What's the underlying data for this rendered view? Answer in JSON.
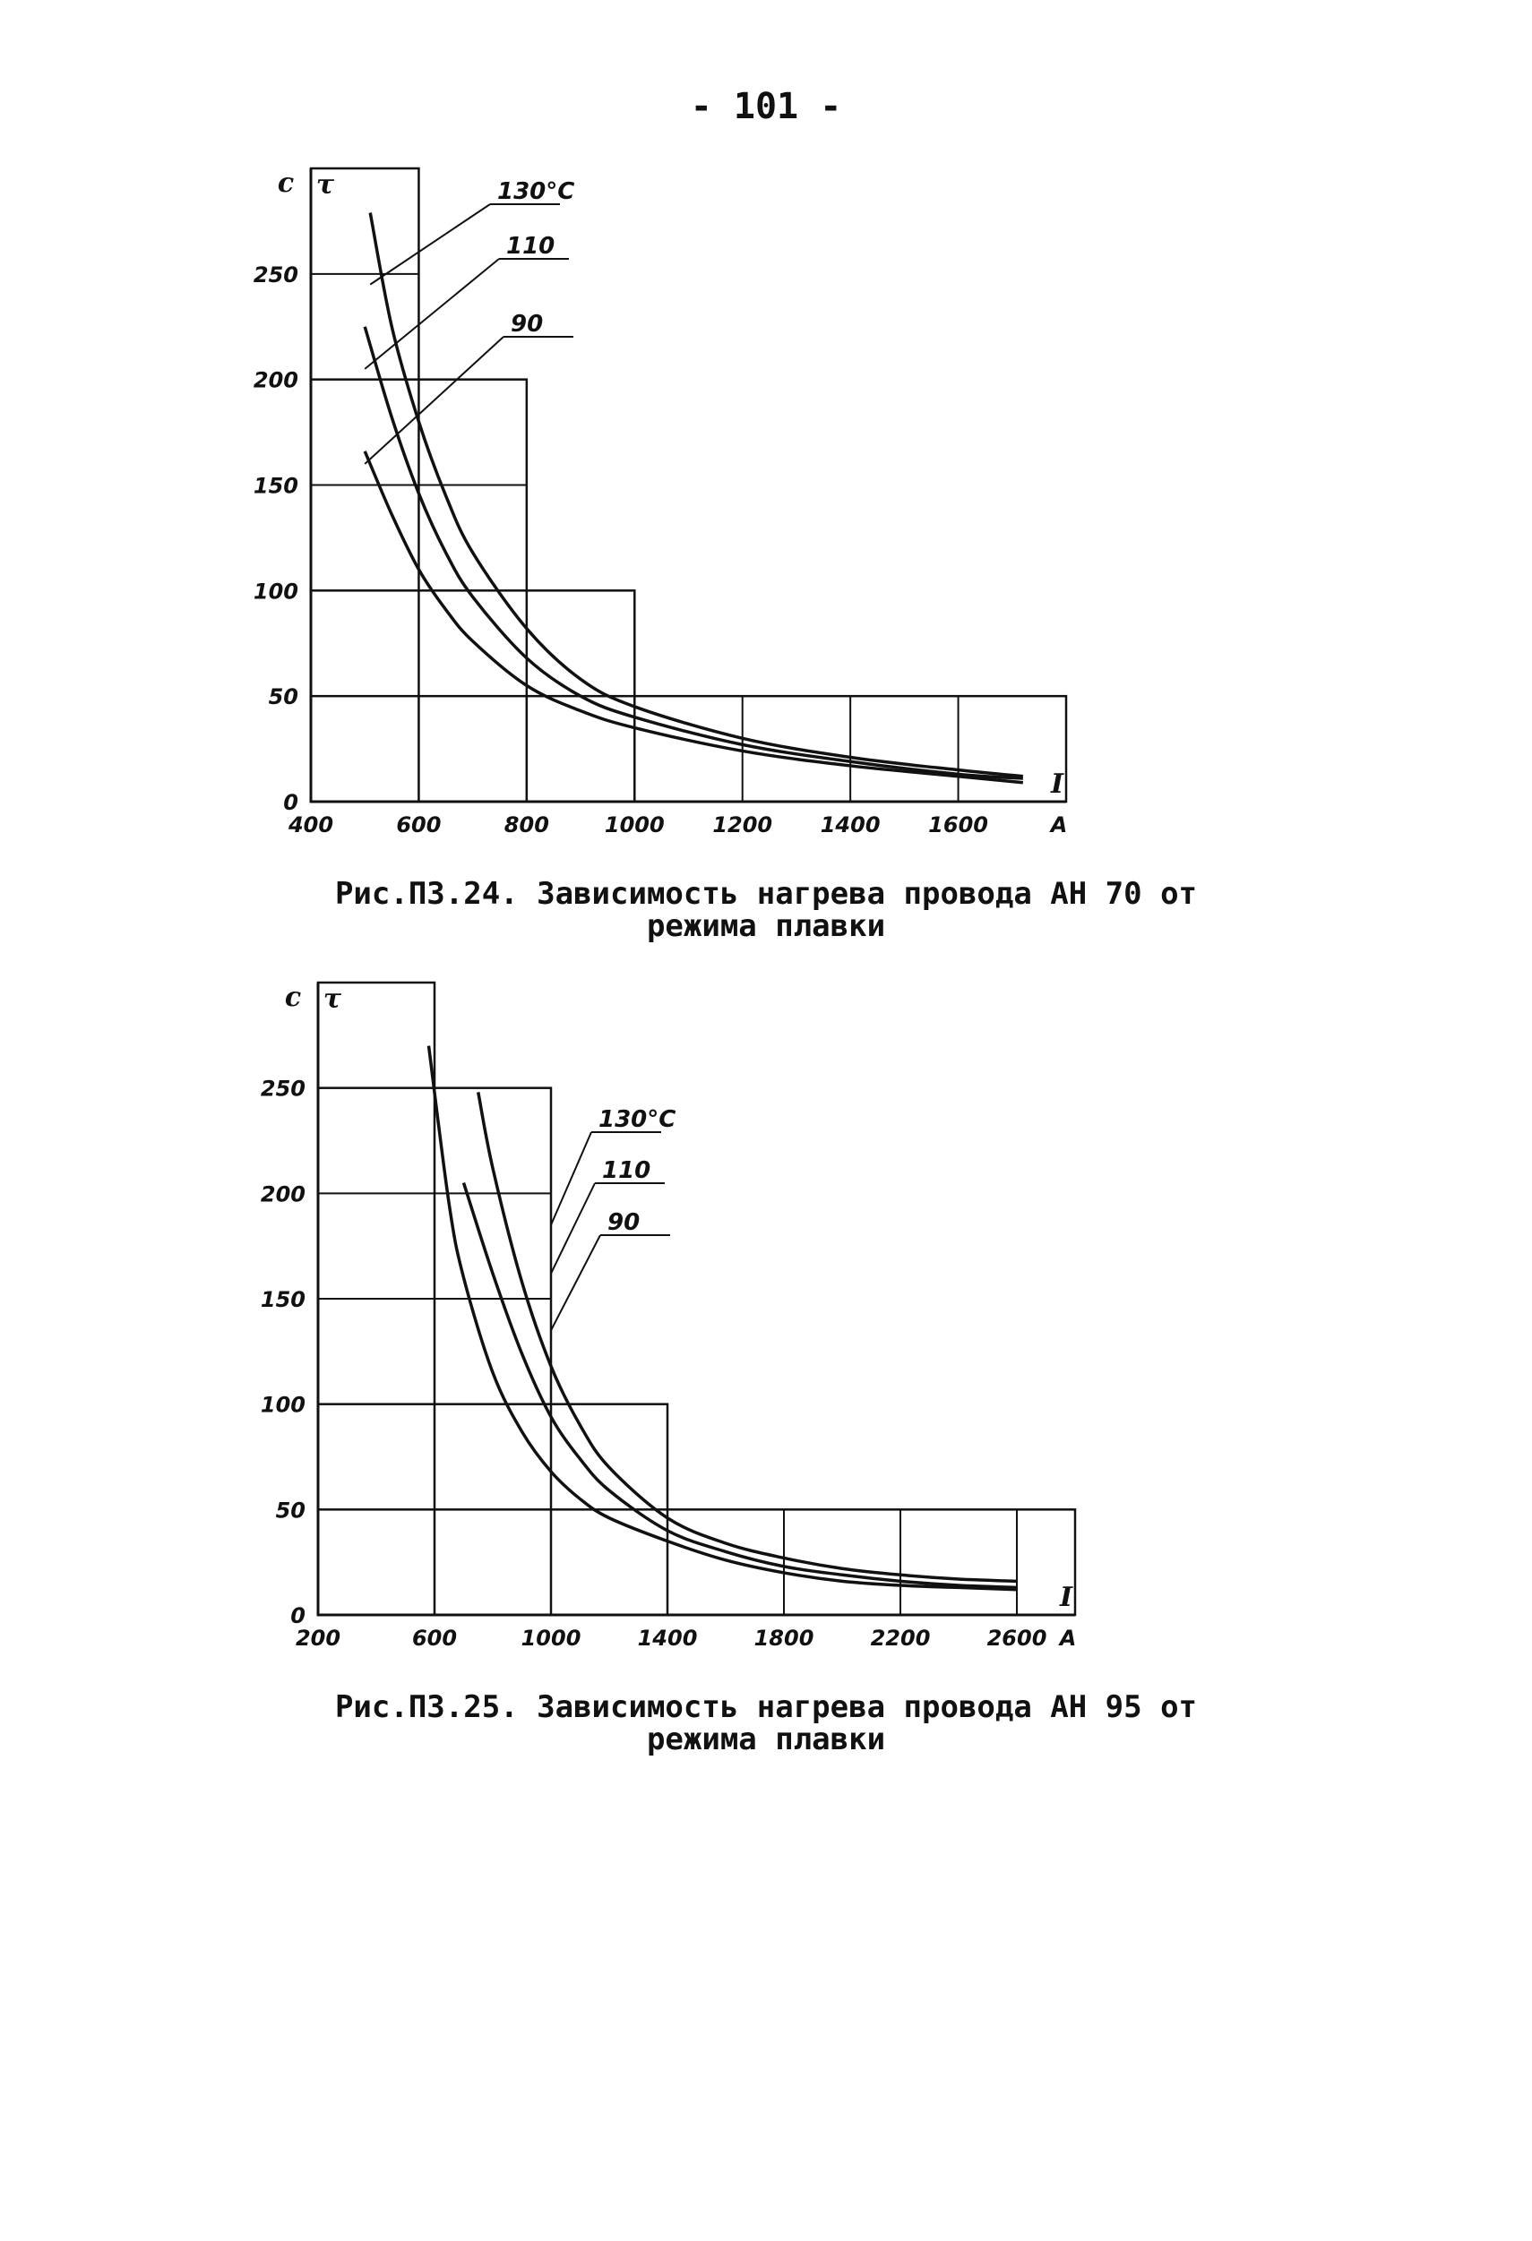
{
  "page_number": "- 101 -",
  "chart_data": [
    {
      "type": "line",
      "caption_line1": "Рис.П3.24. Зависимость нагрева провода АН 70 от",
      "caption_line2": "режима плавки",
      "y_unit": "с",
      "y_symbol": "τ",
      "x_symbol": "I",
      "x_unit": "А",
      "xlim": [
        400,
        1800
      ],
      "ylim": [
        0,
        300
      ],
      "x_ticks": [
        400,
        600,
        800,
        1000,
        1200,
        1400,
        1600
      ],
      "x_tick_labels": [
        "400",
        "600",
        "800",
        "1000",
        "1200",
        "1400",
        "1600"
      ],
      "y_ticks": [
        0,
        50,
        100,
        150,
        200,
        250
      ],
      "y_tick_labels": [
        "0",
        "50",
        "100",
        "150",
        "200",
        "250"
      ],
      "series": [
        {
          "name": "130°С",
          "x": [
            510,
            550,
            600,
            650,
            700,
            800,
            900,
            1000,
            1200,
            1400,
            1600,
            1720
          ],
          "y": [
            279,
            225,
            180,
            145,
            118,
            82,
            58,
            45,
            30,
            21,
            15,
            12
          ]
        },
        {
          "name": "110",
          "x": [
            500,
            550,
            600,
            650,
            700,
            800,
            900,
            1000,
            1200,
            1400,
            1600,
            1720
          ],
          "y": [
            225,
            182,
            146,
            118,
            97,
            68,
            50,
            40,
            27,
            19,
            13,
            11
          ]
        },
        {
          "name": "90",
          "x": [
            500,
            550,
            600,
            650,
            700,
            800,
            900,
            1000,
            1200,
            1400,
            1600,
            1720
          ],
          "y": [
            166,
            136,
            110,
            91,
            76,
            55,
            43,
            35,
            24,
            17,
            12,
            9
          ]
        }
      ]
    },
    {
      "type": "line",
      "caption_line1": "Рис.П3.25. Зависимость нагрева провода АН 95 от",
      "caption_line2": "режима плавки",
      "y_unit": "с",
      "y_symbol": "τ",
      "x_symbol": "I",
      "x_unit": "А",
      "xlim": [
        200,
        2800
      ],
      "ylim": [
        0,
        300
      ],
      "x_ticks": [
        200,
        600,
        1000,
        1400,
        1800,
        2200,
        2600
      ],
      "x_tick_labels": [
        "200",
        "600",
        "1000",
        "1400",
        "1800",
        "2200",
        "2600"
      ],
      "y_ticks": [
        0,
        50,
        100,
        150,
        200,
        250
      ],
      "y_tick_labels": [
        "0",
        "50",
        "100",
        "150",
        "200",
        "250"
      ],
      "series": [
        {
          "name": "130°С",
          "x": [
            750,
            800,
            900,
            1000,
            1100,
            1200,
            1400,
            1600,
            1800,
            2000,
            2200,
            2400,
            2600
          ],
          "y": [
            248,
            212,
            158,
            118,
            90,
            70,
            46,
            34,
            27,
            22,
            19,
            17,
            16
          ]
        },
        {
          "name": "110",
          "x": [
            700,
            800,
            900,
            1000,
            1100,
            1200,
            1400,
            1600,
            1800,
            2000,
            2200,
            2400,
            2600
          ],
          "y": [
            205,
            162,
            124,
            94,
            74,
            59,
            40,
            30,
            23,
            19,
            16,
            14,
            13
          ]
        },
        {
          "name": "90",
          "x": [
            580,
            650,
            700,
            800,
            900,
            1000,
            1100,
            1200,
            1400,
            1600,
            1800,
            2000,
            2200,
            2400,
            2600
          ],
          "y": [
            270,
            195,
            160,
            115,
            87,
            68,
            55,
            46,
            35,
            26,
            20,
            16,
            14,
            13,
            12
          ]
        }
      ]
    }
  ]
}
